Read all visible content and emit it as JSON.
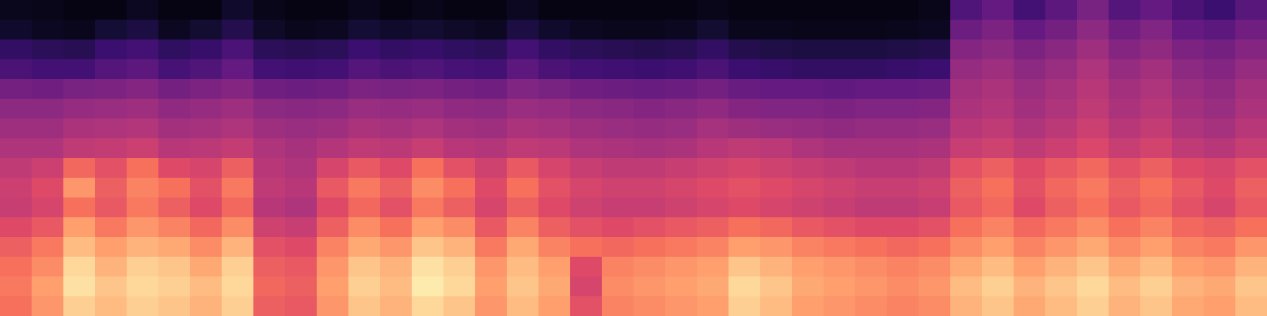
{
  "chart_data": {
    "type": "heatmap",
    "color": "magma",
    "tick_labels": false,
    "zlim": [
      0,
      100
    ],
    "cells": [
      [
        5,
        4,
        3,
        3,
        6,
        3,
        3,
        8,
        4,
        3,
        3,
        5,
        3,
        4,
        3,
        3,
        6,
        3,
        3,
        3,
        3,
        3,
        4,
        3,
        3,
        3,
        3,
        3,
        3,
        4,
        25,
        30,
        22,
        28,
        35,
        26,
        30,
        24,
        20,
        27
      ],
      [
        8,
        6,
        5,
        10,
        12,
        6,
        9,
        14,
        7,
        5,
        6,
        10,
        8,
        9,
        7,
        6,
        12,
        8,
        6,
        5,
        5,
        6,
        9,
        5,
        5,
        4,
        4,
        4,
        5,
        6,
        32,
        36,
        30,
        34,
        40,
        33,
        37,
        30,
        28,
        33
      ],
      [
        18,
        16,
        15,
        20,
        22,
        17,
        19,
        24,
        16,
        15,
        16,
        20,
        18,
        19,
        17,
        16,
        22,
        18,
        16,
        15,
        14,
        15,
        18,
        14,
        13,
        12,
        12,
        12,
        13,
        14,
        38,
        40,
        36,
        39,
        44,
        38,
        41,
        36,
        34,
        38
      ],
      [
        24,
        22,
        22,
        26,
        28,
        23,
        25,
        30,
        22,
        21,
        22,
        26,
        24,
        25,
        23,
        22,
        28,
        24,
        22,
        21,
        20,
        21,
        24,
        20,
        19,
        18,
        18,
        18,
        19,
        20,
        42,
        44,
        40,
        43,
        48,
        42,
        45,
        40,
        38,
        42
      ],
      [
        34,
        33,
        35,
        36,
        38,
        34,
        36,
        38,
        33,
        32,
        33,
        36,
        35,
        36,
        34,
        33,
        37,
        35,
        33,
        32,
        31,
        32,
        34,
        31,
        30,
        30,
        29,
        30,
        30,
        31,
        45,
        47,
        43,
        46,
        50,
        45,
        48,
        43,
        41,
        45
      ],
      [
        40,
        40,
        42,
        43,
        44,
        41,
        42,
        44,
        40,
        39,
        40,
        43,
        42,
        43,
        41,
        40,
        43,
        42,
        40,
        39,
        38,
        39,
        41,
        38,
        37,
        37,
        36,
        37,
        37,
        38,
        47,
        49,
        45,
        48,
        52,
        47,
        50,
        45,
        43,
        47
      ],
      [
        44,
        44,
        47,
        48,
        49,
        45,
        46,
        48,
        44,
        43,
        44,
        47,
        46,
        48,
        45,
        44,
        47,
        46,
        44,
        43,
        42,
        43,
        46,
        44,
        43,
        42,
        41,
        42,
        42,
        43,
        50,
        52,
        48,
        51,
        55,
        50,
        53,
        48,
        46,
        50
      ],
      [
        48,
        48,
        52,
        53,
        55,
        50,
        51,
        53,
        48,
        46,
        49,
        52,
        51,
        54,
        50,
        49,
        52,
        51,
        48,
        47,
        46,
        47,
        50,
        52,
        51,
        48,
        46,
        46,
        46,
        47,
        54,
        56,
        52,
        55,
        59,
        54,
        57,
        52,
        50,
        54
      ],
      [
        52,
        55,
        68,
        62,
        70,
        60,
        58,
        66,
        50,
        48,
        58,
        64,
        60,
        70,
        62,
        56,
        64,
        58,
        54,
        52,
        52,
        54,
        56,
        58,
        56,
        54,
        52,
        50,
        50,
        52,
        62,
        66,
        60,
        64,
        68,
        62,
        66,
        60,
        58,
        62
      ],
      [
        55,
        60,
        78,
        66,
        74,
        70,
        62,
        72,
        52,
        50,
        64,
        72,
        66,
        76,
        70,
        60,
        70,
        62,
        58,
        56,
        56,
        58,
        60,
        62,
        60,
        58,
        56,
        54,
        54,
        56,
        66,
        70,
        62,
        68,
        72,
        66,
        70,
        64,
        60,
        66
      ],
      [
        54,
        58,
        70,
        64,
        72,
        66,
        60,
        68,
        50,
        48,
        60,
        68,
        62,
        72,
        66,
        58,
        66,
        60,
        56,
        54,
        54,
        56,
        58,
        60,
        58,
        56,
        54,
        52,
        52,
        54,
        64,
        68,
        60,
        66,
        70,
        64,
        68,
        62,
        58,
        64
      ],
      [
        60,
        64,
        80,
        72,
        78,
        74,
        68,
        76,
        56,
        54,
        66,
        76,
        70,
        80,
        76,
        64,
        74,
        66,
        62,
        60,
        62,
        64,
        66,
        70,
        68,
        64,
        62,
        60,
        60,
        62,
        70,
        74,
        68,
        72,
        76,
        70,
        74,
        68,
        66,
        70
      ],
      [
        66,
        72,
        86,
        80,
        84,
        82,
        76,
        84,
        62,
        60,
        74,
        82,
        78,
        88,
        84,
        72,
        82,
        74,
        70,
        68,
        70,
        72,
        74,
        80,
        78,
        74,
        72,
        70,
        68,
        70,
        76,
        80,
        74,
        78,
        82,
        76,
        80,
        74,
        72,
        78
      ],
      [
        70,
        76,
        92,
        84,
        90,
        88,
        82,
        90,
        66,
        64,
        78,
        88,
        84,
        94,
        90,
        78,
        86,
        80,
        60,
        74,
        76,
        78,
        80,
        88,
        84,
        80,
        78,
        76,
        74,
        76,
        82,
        86,
        80,
        84,
        88,
        82,
        86,
        80,
        78,
        84
      ],
      [
        72,
        80,
        94,
        88,
        92,
        90,
        86,
        92,
        68,
        66,
        80,
        90,
        86,
        96,
        92,
        80,
        88,
        82,
        58,
        76,
        78,
        80,
        82,
        92,
        88,
        82,
        80,
        78,
        76,
        78,
        86,
        90,
        84,
        88,
        92,
        86,
        90,
        84,
        82,
        88
      ],
      [
        70,
        78,
        90,
        86,
        90,
        88,
        84,
        90,
        66,
        64,
        78,
        88,
        84,
        92,
        88,
        78,
        86,
        80,
        62,
        74,
        76,
        78,
        80,
        90,
        86,
        80,
        78,
        76,
        74,
        76,
        84,
        88,
        82,
        86,
        90,
        84,
        88,
        82,
        80,
        86
      ]
    ]
  }
}
